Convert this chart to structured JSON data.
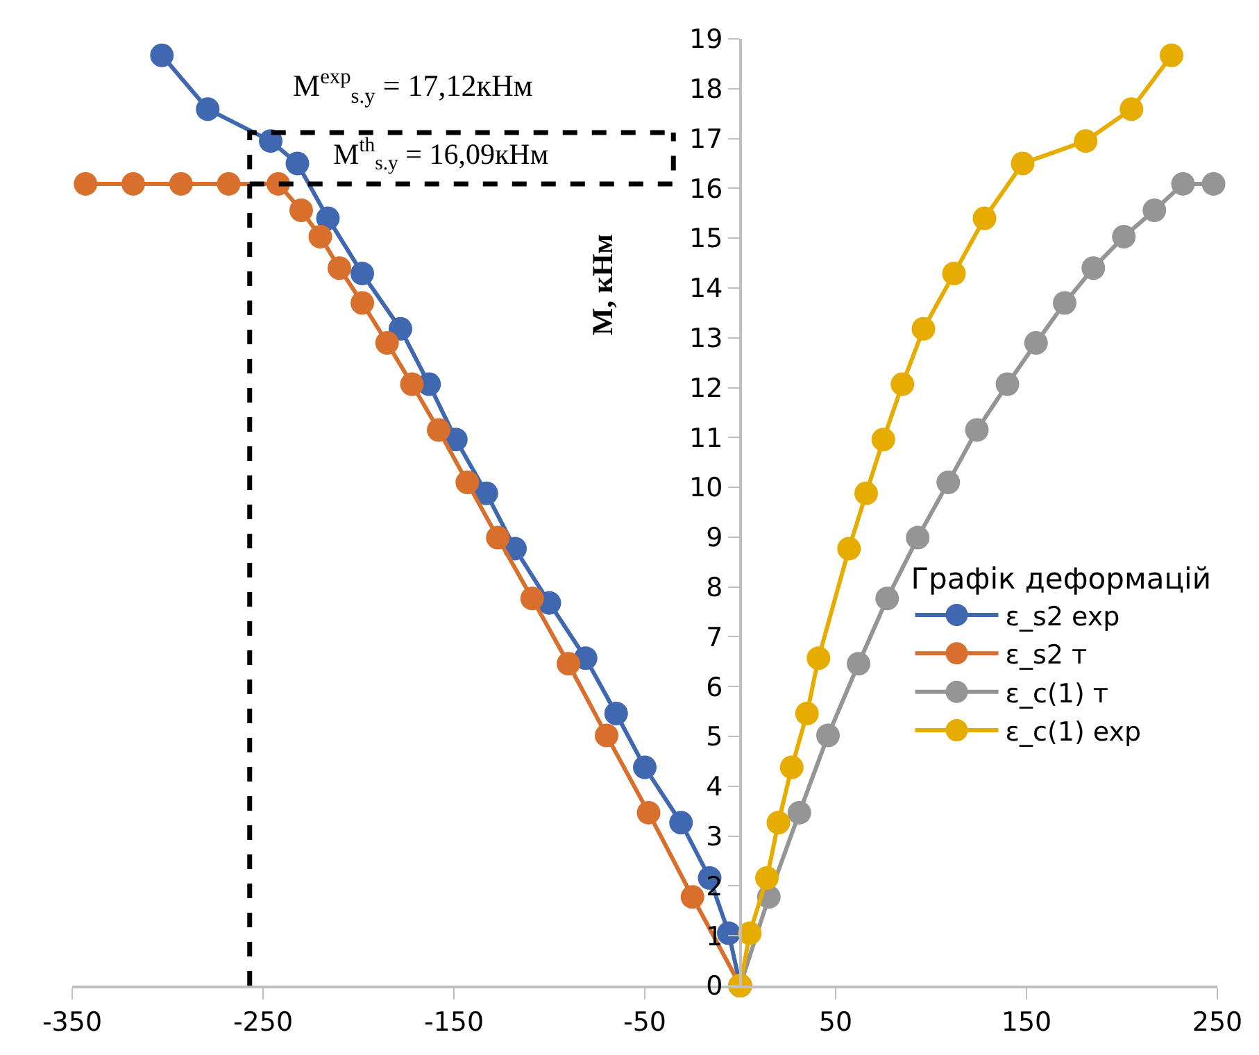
{
  "chart_data": {
    "type": "line",
    "ylabel": "M, кНм",
    "legend_title": "Графік деформацій",
    "xlim": [
      -350,
      250
    ],
    "xticks": [
      -350,
      -250,
      -150,
      -50,
      50,
      150,
      250
    ],
    "ylim": [
      0,
      19
    ],
    "yticks": [
      0,
      1,
      2,
      3,
      4,
      5,
      6,
      7,
      8,
      9,
      10,
      11,
      12,
      13,
      14,
      15,
      16,
      17,
      18,
      19
    ],
    "legend": "right",
    "marker": "circle",
    "line_style": "solid",
    "series": [
      {
        "name": "ε_s2 exp",
        "color": "#4068b0",
        "x": [
          0,
          -6,
          -16,
          -31,
          -50,
          -65,
          -81,
          -100,
          -118,
          -133,
          -149,
          -163,
          -178,
          -198,
          -216,
          -232,
          -246,
          -279,
          -303
        ],
        "values": [
          0,
          1.05,
          2.16,
          3.27,
          4.38,
          5.46,
          6.57,
          7.68,
          8.77,
          9.88,
          10.96,
          12.07,
          13.18,
          14.29,
          15.4,
          16.5,
          16.95,
          17.59,
          18.67
        ]
      },
      {
        "name": "ε_s2 т",
        "color": "#d86f2c",
        "x": [
          0,
          -25,
          -48,
          -70,
          -90,
          -109,
          -127,
          -143,
          -158,
          -172,
          -185,
          -198,
          -210,
          -220,
          -230,
          -242,
          -268,
          -293,
          -318,
          -343
        ],
        "values": [
          0,
          1.78,
          3.47,
          5.02,
          6.46,
          7.77,
          8.99,
          10.1,
          11.15,
          12.07,
          12.9,
          13.7,
          14.4,
          15.03,
          15.56,
          16.09,
          16.09,
          16.09,
          16.09,
          16.09
        ]
      },
      {
        "name": "ε_c(1) т",
        "color": "#959595",
        "x": [
          0,
          15,
          31,
          46,
          62,
          77,
          93,
          109,
          124,
          140,
          155,
          170,
          185,
          201,
          217,
          232,
          248
        ],
        "values": [
          0,
          1.78,
          3.47,
          5.02,
          6.46,
          7.77,
          8.99,
          10.1,
          11.15,
          12.07,
          12.9,
          13.7,
          14.4,
          15.03,
          15.56,
          16.09,
          16.09
        ]
      },
      {
        "name": "ε_c(1) exp",
        "color": "#e6ac00",
        "x": [
          0,
          5,
          14,
          20,
          27,
          35,
          41,
          57,
          66,
          75,
          85,
          96,
          112,
          128,
          148,
          181,
          205,
          226
        ],
        "values": [
          0,
          1.05,
          2.16,
          3.27,
          4.38,
          5.46,
          6.57,
          8.77,
          9.88,
          10.96,
          12.07,
          13.18,
          14.29,
          15.4,
          16.5,
          16.95,
          17.59,
          18.67
        ]
      },
      {
        "type": "line",
        "color": "#000000",
        "line_style": "dashed",
        "marker": "none",
        "x": [
          -257,
          -257,
          -35
        ],
        "values": [
          0,
          17.12,
          17.12
        ]
      },
      {
        "type": "line",
        "color": "#000000",
        "line_style": "dashed",
        "marker": "none",
        "x": [
          -257,
          -35,
          -35
        ],
        "values": [
          16.09,
          16.09,
          17.12
        ]
      }
    ],
    "annotations": [
      "M$^{exp}$$_{s.y}$ = 17,12кНм",
      "M$^{th}$$_{s.y}$ = 16,09кНм"
    ]
  }
}
